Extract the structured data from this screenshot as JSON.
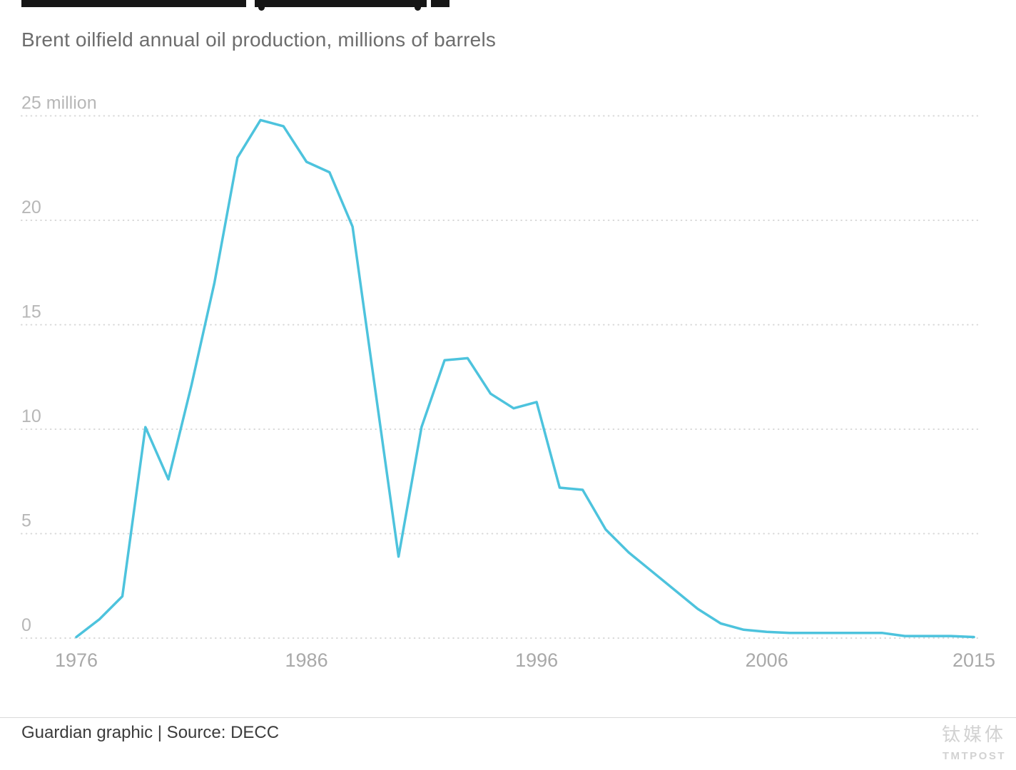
{
  "subtitle": "Brent oilfield annual oil production, millions of barrels",
  "footer": {
    "credit": "Guardian graphic | Source: DECC"
  },
  "watermark": {
    "line1": "钛媒体",
    "line2": "TMTPOST"
  },
  "chart_data": {
    "type": "line",
    "title": "Brent oilfield annual oil production, millions of barrels",
    "xlabel": "",
    "ylabel": "millions of barrels",
    "x": [
      1976,
      1977,
      1978,
      1979,
      1980,
      1981,
      1982,
      1983,
      1984,
      1985,
      1986,
      1987,
      1988,
      1989,
      1990,
      1991,
      1992,
      1993,
      1994,
      1995,
      1996,
      1997,
      1998,
      1999,
      2000,
      2001,
      2002,
      2003,
      2004,
      2005,
      2006,
      2007,
      2008,
      2009,
      2010,
      2011,
      2012,
      2013,
      2014,
      2015
    ],
    "values": [
      0.05,
      0.9,
      2.0,
      10.1,
      7.6,
      12.1,
      17.0,
      23.0,
      24.8,
      24.5,
      22.8,
      22.3,
      19.7,
      11.8,
      3.9,
      10.1,
      13.3,
      13.4,
      11.7,
      11.0,
      11.3,
      7.2,
      7.1,
      5.2,
      4.1,
      3.2,
      2.3,
      1.4,
      0.7,
      0.4,
      0.3,
      0.25,
      0.25,
      0.25,
      0.25,
      0.25,
      0.1,
      0.1,
      0.1,
      0.05
    ],
    "ylim": [
      0,
      25
    ],
    "yticks": [
      0,
      5,
      10,
      15,
      20,
      25
    ],
    "ytick_labels": [
      "0",
      "5",
      "10",
      "15",
      "20",
      "25 million"
    ],
    "xticks": [
      1976,
      1986,
      1996,
      2006,
      2015
    ],
    "grid": "dotted horizontal",
    "legend": "none",
    "line_color": "#4dc3dd"
  }
}
